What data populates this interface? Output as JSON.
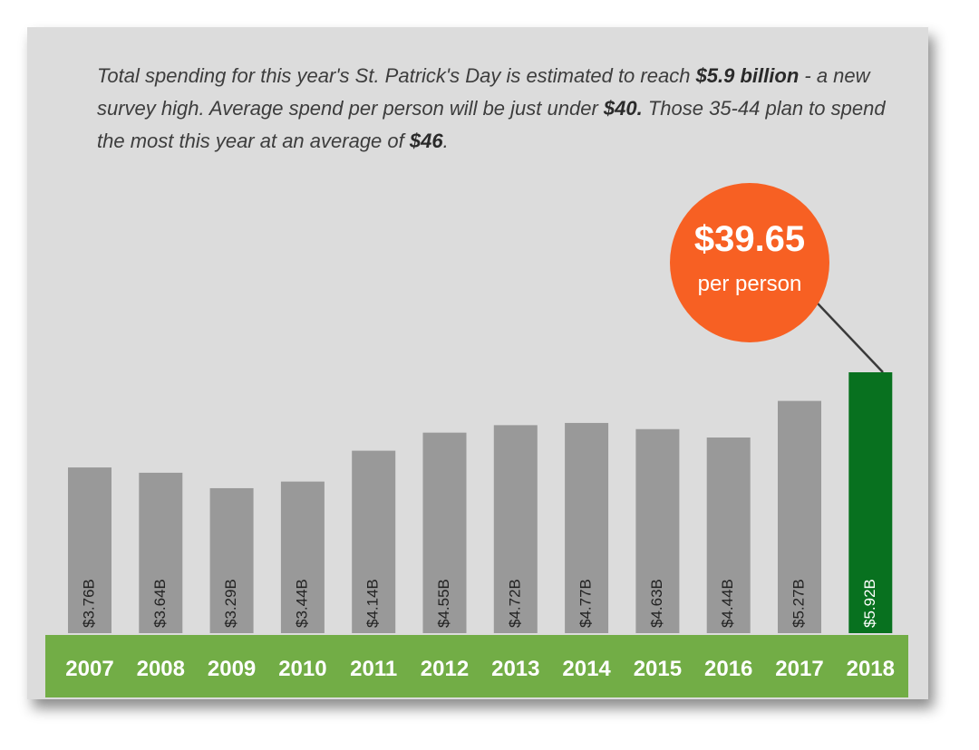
{
  "intro": {
    "p1": "Total spending for this year's St. Patrick's Day is estimated to reach ",
    "b1": "$5.9 billion",
    "p2": " - a new survey high. Average spend per person will be just under ",
    "b2": "$40.",
    "p3": " Those 35-44 plan to spend the most this year at an average of ",
    "b3": "$46",
    "p4": "."
  },
  "callout": {
    "value": "$39.65",
    "unit": "per person"
  },
  "colors": {
    "bar_default": "#999999",
    "bar_highlight": "#08711f",
    "axis_band": "#72ad46",
    "callout": "#f76023",
    "background": "#dcdcdc"
  },
  "chart_data": {
    "type": "bar",
    "categories": [
      "2007",
      "2008",
      "2009",
      "2010",
      "2011",
      "2012",
      "2013",
      "2014",
      "2015",
      "2016",
      "2017",
      "2018"
    ],
    "values": [
      3.76,
      3.64,
      3.29,
      3.44,
      4.14,
      4.55,
      4.72,
      4.77,
      4.63,
      4.44,
      5.27,
      5.92
    ],
    "labels": [
      "$3.76B",
      "$3.64B",
      "$3.29B",
      "$3.44B",
      "$4.14B",
      "$4.55B",
      "$4.72B",
      "$4.77B",
      "$4.63B",
      "$4.44B",
      "$5.27B",
      "$5.92B"
    ],
    "highlight_index": 11,
    "title": "",
    "xlabel": "",
    "ylabel": "",
    "ylim": [
      0,
      6
    ],
    "grid": false,
    "legend": "none"
  }
}
